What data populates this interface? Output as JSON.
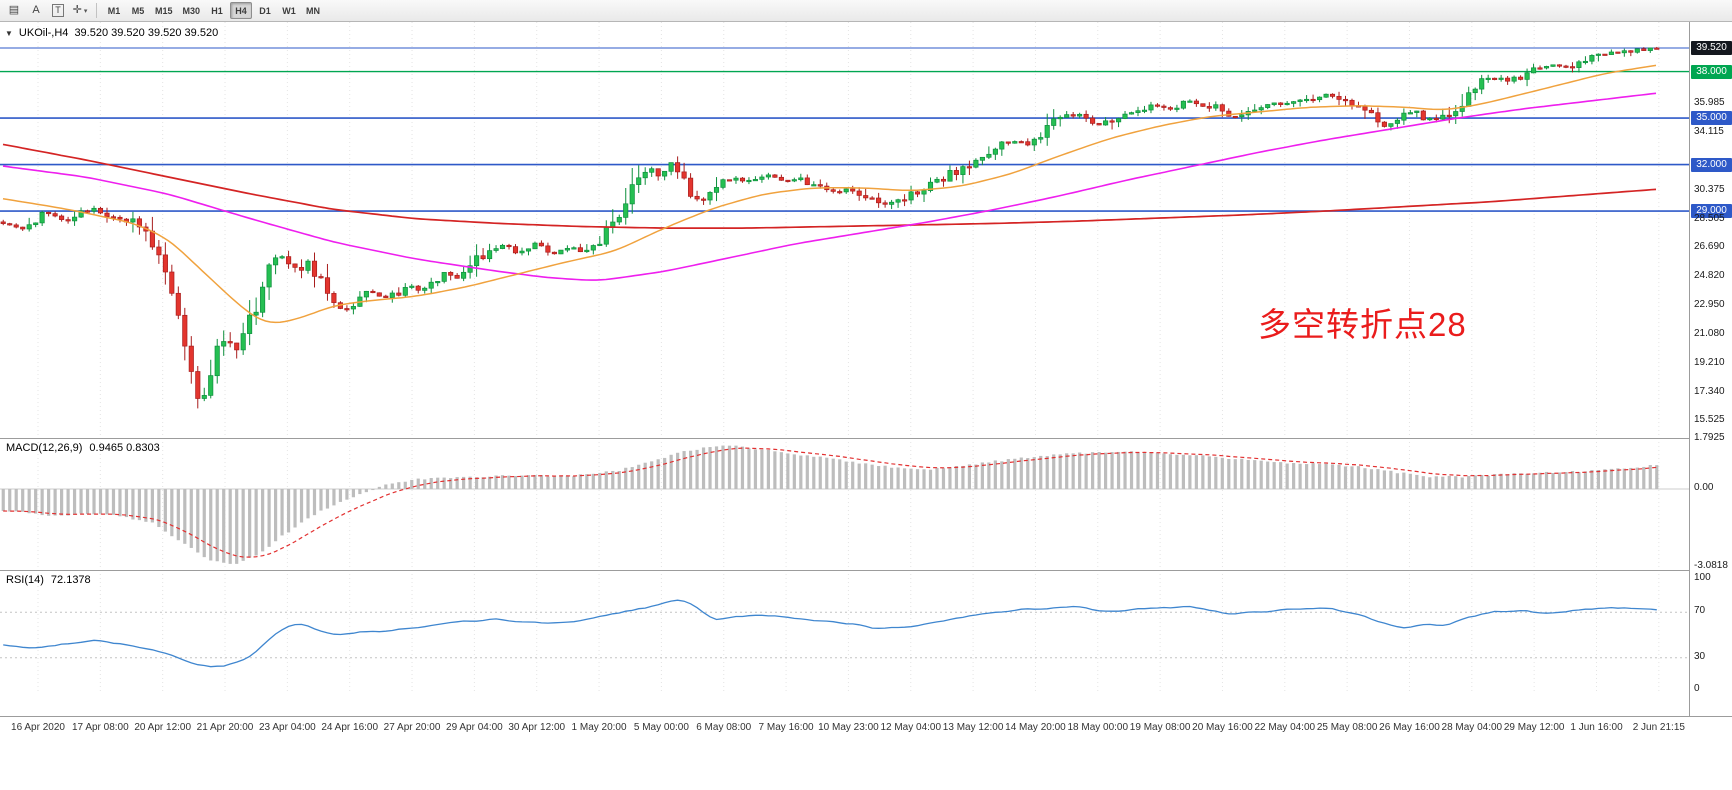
{
  "toolbar": {
    "tools": [
      {
        "name": "charts-grid-icon",
        "glyph": "▤"
      },
      {
        "name": "text-label-tool",
        "glyph": "A"
      },
      {
        "name": "text-box-tool",
        "glyph": "T"
      },
      {
        "name": "crosshair-tool",
        "glyph": "✛",
        "caret": "▾"
      }
    ],
    "timeframes": [
      "M1",
      "M5",
      "M15",
      "M30",
      "H1",
      "H4",
      "D1",
      "W1",
      "MN"
    ],
    "active_timeframe": "H4"
  },
  "main_chart": {
    "collapse_icon": "▼",
    "title": "UKOil-,H4",
    "ohlc": "39.520 39.520 39.520 39.520",
    "annotation": "多空转折点28",
    "axis_ticks": [
      "35.985",
      "34.115",
      "30.375",
      "28.505",
      "26.690",
      "24.820",
      "22.950",
      "21.080",
      "19.210",
      "17.340",
      "15.525"
    ],
    "badges": [
      {
        "label": "39.520",
        "value": 39.52,
        "bg": "#14181f"
      },
      {
        "label": "38.000",
        "value": 38.0,
        "bg": "#00a651"
      },
      {
        "label": "35.000",
        "value": 35.0,
        "bg": "#2e59c8"
      },
      {
        "label": "32.000",
        "value": 32.0,
        "bg": "#2e59c8"
      },
      {
        "label": "29.000",
        "value": 29.0,
        "bg": "#2e59c8"
      }
    ]
  },
  "macd_panel": {
    "label": "MACD(12,26,9)",
    "values": "0.9465 0.8303",
    "axis": [
      "1.7925",
      "0.00",
      "-3.0818"
    ]
  },
  "rsi_panel": {
    "label": "RSI(14)",
    "value": "72.1378",
    "axis": [
      "100",
      "70",
      "30",
      "0"
    ]
  },
  "time_axis": {
    "labels": [
      "16 Apr 2020",
      "17 Apr 08:00",
      "20 Apr 12:00",
      "21 Apr 20:00",
      "23 Apr 04:00",
      "24 Apr 16:00",
      "27 Apr 20:00",
      "29 Apr 04:00",
      "30 Apr 12:00",
      "1 May 20:00",
      "5 May 00:00",
      "6 May 08:00",
      "7 May 16:00",
      "10 May 23:00",
      "12 May 04:00",
      "13 May 12:00",
      "14 May 20:00",
      "18 May 00:00",
      "19 May 08:00",
      "20 May 16:00",
      "22 May 04:00",
      "25 May 08:00",
      "26 May 16:00",
      "28 May 04:00",
      "29 May 12:00",
      "1 Jun 16:00",
      "2 Jun 21:15"
    ]
  },
  "chart_data": {
    "type": "candlestick",
    "symbol": "UKOil-",
    "timeframe": "H4",
    "current_price": 39.52,
    "macd_current": 0.9465,
    "macd_signal_current": 0.8303,
    "rsi_current": 72.1378,
    "price_axis_range": [
      15.525,
      39.725
    ],
    "levels": [
      {
        "value": 39.52,
        "color": "#2e59c8",
        "width": 1
      },
      {
        "value": 38.0,
        "color": "#00a651",
        "width": 1.4
      },
      {
        "value": 35.0,
        "color": "#2e59c8",
        "width": 1.6
      },
      {
        "value": 32.0,
        "color": "#2e59c8",
        "width": 1.6
      },
      {
        "value": 29.0,
        "color": "#2e59c8",
        "width": 1.6
      }
    ],
    "price_anchors": [
      [
        0,
        28.3
      ],
      [
        0.012,
        27.8
      ],
      [
        0.025,
        28.9
      ],
      [
        0.037,
        28.4
      ],
      [
        0.052,
        29.2
      ],
      [
        0.065,
        28.8
      ],
      [
        0.08,
        28.3
      ],
      [
        0.09,
        26.8
      ],
      [
        0.098,
        24.6
      ],
      [
        0.107,
        21.8
      ],
      [
        0.113,
        18.6
      ],
      [
        0.118,
        16.9
      ],
      [
        0.123,
        17.6
      ],
      [
        0.127,
        19.2
      ],
      [
        0.133,
        21.0
      ],
      [
        0.14,
        20.1
      ],
      [
        0.148,
        22.4
      ],
      [
        0.155,
        23.3
      ],
      [
        0.162,
        25.7
      ],
      [
        0.17,
        26.2
      ],
      [
        0.178,
        25.0
      ],
      [
        0.185,
        25.5
      ],
      [
        0.193,
        24.0
      ],
      [
        0.199,
        23.1
      ],
      [
        0.206,
        22.6
      ],
      [
        0.214,
        23.3
      ],
      [
        0.222,
        23.8
      ],
      [
        0.23,
        23.4
      ],
      [
        0.238,
        23.7
      ],
      [
        0.245,
        24.2
      ],
      [
        0.252,
        23.7
      ],
      [
        0.26,
        24.4
      ],
      [
        0.267,
        25.1
      ],
      [
        0.274,
        24.6
      ],
      [
        0.282,
        25.3
      ],
      [
        0.292,
        26.4
      ],
      [
        0.302,
        26.8
      ],
      [
        0.312,
        26.3
      ],
      [
        0.322,
        26.9
      ],
      [
        0.332,
        26.2
      ],
      [
        0.342,
        26.6
      ],
      [
        0.352,
        26.4
      ],
      [
        0.362,
        27.2
      ],
      [
        0.372,
        28.8
      ],
      [
        0.382,
        30.6
      ],
      [
        0.39,
        31.9
      ],
      [
        0.397,
        31.3
      ],
      [
        0.404,
        32.1
      ],
      [
        0.41,
        30.9
      ],
      [
        0.417,
        29.8
      ],
      [
        0.424,
        29.5
      ],
      [
        0.432,
        30.6
      ],
      [
        0.442,
        31.2
      ],
      [
        0.453,
        30.8
      ],
      [
        0.462,
        31.3
      ],
      [
        0.472,
        30.9
      ],
      [
        0.482,
        31.1
      ],
      [
        0.492,
        30.6
      ],
      [
        0.502,
        30.2
      ],
      [
        0.512,
        30.5
      ],
      [
        0.523,
        29.9
      ],
      [
        0.532,
        29.3
      ],
      [
        0.545,
        29.9
      ],
      [
        0.562,
        30.7
      ],
      [
        0.574,
        31.4
      ],
      [
        0.586,
        32.2
      ],
      [
        0.598,
        32.9
      ],
      [
        0.61,
        33.6
      ],
      [
        0.622,
        33.3
      ],
      [
        0.634,
        34.5
      ],
      [
        0.645,
        35.2
      ],
      [
        0.655,
        35.0
      ],
      [
        0.663,
        34.5
      ],
      [
        0.672,
        35.1
      ],
      [
        0.683,
        35.5
      ],
      [
        0.695,
        35.8
      ],
      [
        0.707,
        35.6
      ],
      [
        0.718,
        36.1
      ],
      [
        0.73,
        35.8
      ],
      [
        0.742,
        35.1
      ],
      [
        0.754,
        35.6
      ],
      [
        0.767,
        36.0
      ],
      [
        0.78,
        35.9
      ],
      [
        0.79,
        36.2
      ],
      [
        0.8,
        36.5
      ],
      [
        0.815,
        36.0
      ],
      [
        0.825,
        35.2
      ],
      [
        0.835,
        34.5
      ],
      [
        0.845,
        35.1
      ],
      [
        0.853,
        35.5
      ],
      [
        0.861,
        34.9
      ],
      [
        0.869,
        34.8
      ],
      [
        0.877,
        35.4
      ],
      [
        0.886,
        36.8
      ],
      [
        0.893,
        37.3
      ],
      [
        0.902,
        37.6
      ],
      [
        0.912,
        37.4
      ],
      [
        0.921,
        37.9
      ],
      [
        0.929,
        38.2
      ],
      [
        0.938,
        38.4
      ],
      [
        0.947,
        38.2
      ],
      [
        0.957,
        38.7
      ],
      [
        0.967,
        39.0
      ],
      [
        0.977,
        39.3
      ],
      [
        0.988,
        39.4
      ],
      [
        1,
        39.52
      ]
    ],
    "ma_fast_orange": [
      [
        0,
        29.8
      ],
      [
        0.04,
        29.1
      ],
      [
        0.08,
        28.2
      ],
      [
        0.1,
        27.2
      ],
      [
        0.12,
        25.2
      ],
      [
        0.14,
        23.2
      ],
      [
        0.155,
        21.9
      ],
      [
        0.165,
        21.7
      ],
      [
        0.18,
        22.1
      ],
      [
        0.2,
        22.9
      ],
      [
        0.22,
        23.2
      ],
      [
        0.25,
        23.5
      ],
      [
        0.28,
        24.1
      ],
      [
        0.31,
        24.9
      ],
      [
        0.34,
        25.7
      ],
      [
        0.37,
        26.4
      ],
      [
        0.4,
        27.9
      ],
      [
        0.43,
        29.2
      ],
      [
        0.46,
        30.1
      ],
      [
        0.49,
        30.5
      ],
      [
        0.52,
        30.5
      ],
      [
        0.55,
        30.3
      ],
      [
        0.58,
        30.6
      ],
      [
        0.61,
        31.4
      ],
      [
        0.64,
        32.6
      ],
      [
        0.67,
        33.7
      ],
      [
        0.7,
        34.5
      ],
      [
        0.73,
        35.1
      ],
      [
        0.76,
        35.4
      ],
      [
        0.79,
        35.7
      ],
      [
        0.82,
        35.8
      ],
      [
        0.85,
        35.7
      ],
      [
        0.87,
        35.5
      ],
      [
        0.89,
        35.8
      ],
      [
        0.91,
        36.3
      ],
      [
        0.94,
        37.1
      ],
      [
        0.97,
        37.9
      ],
      [
        1,
        38.4
      ]
    ],
    "ma_mid_magenta": [
      [
        0,
        31.9
      ],
      [
        0.05,
        31.2
      ],
      [
        0.1,
        30.1
      ],
      [
        0.15,
        28.5
      ],
      [
        0.2,
        27.0
      ],
      [
        0.25,
        25.9
      ],
      [
        0.3,
        25.1
      ],
      [
        0.33,
        24.7
      ],
      [
        0.36,
        24.5
      ],
      [
        0.4,
        25.1
      ],
      [
        0.44,
        26.0
      ],
      [
        0.48,
        26.9
      ],
      [
        0.52,
        27.6
      ],
      [
        0.56,
        28.3
      ],
      [
        0.6,
        29.1
      ],
      [
        0.64,
        30.0
      ],
      [
        0.68,
        31.0
      ],
      [
        0.72,
        31.9
      ],
      [
        0.76,
        32.8
      ],
      [
        0.8,
        33.6
      ],
      [
        0.84,
        34.3
      ],
      [
        0.88,
        35.0
      ],
      [
        0.92,
        35.6
      ],
      [
        0.96,
        36.1
      ],
      [
        1,
        36.6
      ]
    ],
    "ma_slow_red": [
      [
        0,
        33.3
      ],
      [
        0.05,
        32.3
      ],
      [
        0.1,
        31.2
      ],
      [
        0.15,
        30.1
      ],
      [
        0.2,
        29.1
      ],
      [
        0.25,
        28.5
      ],
      [
        0.3,
        28.2
      ],
      [
        0.35,
        28.0
      ],
      [
        0.4,
        27.9
      ],
      [
        0.45,
        27.9
      ],
      [
        0.5,
        28.0
      ],
      [
        0.55,
        28.1
      ],
      [
        0.6,
        28.2
      ],
      [
        0.65,
        28.35
      ],
      [
        0.7,
        28.55
      ],
      [
        0.75,
        28.75
      ],
      [
        0.8,
        29.0
      ],
      [
        0.85,
        29.3
      ],
      [
        0.9,
        29.6
      ],
      [
        0.95,
        30.0
      ],
      [
        1,
        30.4
      ]
    ],
    "macd_anchors": [
      [
        0,
        -0.85
      ],
      [
        0.03,
        -1.05
      ],
      [
        0.06,
        -0.95
      ],
      [
        0.09,
        -1.35
      ],
      [
        0.11,
        -2.2
      ],
      [
        0.125,
        -2.85
      ],
      [
        0.14,
        -3.0
      ],
      [
        0.155,
        -2.55
      ],
      [
        0.17,
        -1.8
      ],
      [
        0.19,
        -0.95
      ],
      [
        0.21,
        -0.35
      ],
      [
        0.23,
        0.15
      ],
      [
        0.25,
        0.4
      ],
      [
        0.28,
        0.45
      ],
      [
        0.31,
        0.55
      ],
      [
        0.34,
        0.5
      ],
      [
        0.37,
        0.7
      ],
      [
        0.39,
        1.05
      ],
      [
        0.41,
        1.45
      ],
      [
        0.425,
        1.65
      ],
      [
        0.44,
        1.72
      ],
      [
        0.46,
        1.55
      ],
      [
        0.48,
        1.38
      ],
      [
        0.5,
        1.2
      ],
      [
        0.52,
        1.0
      ],
      [
        0.54,
        0.85
      ],
      [
        0.56,
        0.78
      ],
      [
        0.58,
        0.9
      ],
      [
        0.6,
        1.1
      ],
      [
        0.62,
        1.25
      ],
      [
        0.64,
        1.38
      ],
      [
        0.66,
        1.45
      ],
      [
        0.68,
        1.48
      ],
      [
        0.7,
        1.42
      ],
      [
        0.72,
        1.35
      ],
      [
        0.74,
        1.22
      ],
      [
        0.76,
        1.1
      ],
      [
        0.78,
        1.02
      ],
      [
        0.8,
        0.98
      ],
      [
        0.82,
        0.88
      ],
      [
        0.84,
        0.68
      ],
      [
        0.86,
        0.5
      ],
      [
        0.88,
        0.48
      ],
      [
        0.9,
        0.55
      ],
      [
        0.92,
        0.62
      ],
      [
        0.94,
        0.66
      ],
      [
        0.96,
        0.72
      ],
      [
        0.98,
        0.82
      ],
      [
        1,
        0.9465
      ]
    ],
    "rsi_anchors": [
      [
        0,
        41
      ],
      [
        0.02,
        38
      ],
      [
        0.04,
        43
      ],
      [
        0.06,
        45
      ],
      [
        0.08,
        40
      ],
      [
        0.1,
        33
      ],
      [
        0.115,
        25
      ],
      [
        0.13,
        21
      ],
      [
        0.14,
        26
      ],
      [
        0.15,
        31
      ],
      [
        0.16,
        45
      ],
      [
        0.17,
        57
      ],
      [
        0.18,
        60
      ],
      [
        0.19,
        55
      ],
      [
        0.2,
        50
      ],
      [
        0.22,
        53
      ],
      [
        0.24,
        55
      ],
      [
        0.26,
        58
      ],
      [
        0.28,
        62
      ],
      [
        0.3,
        64
      ],
      [
        0.32,
        60
      ],
      [
        0.34,
        61
      ],
      [
        0.36,
        65
      ],
      [
        0.38,
        72
      ],
      [
        0.4,
        78
      ],
      [
        0.41,
        81
      ],
      [
        0.42,
        73
      ],
      [
        0.43,
        62
      ],
      [
        0.44,
        66
      ],
      [
        0.46,
        68
      ],
      [
        0.48,
        64
      ],
      [
        0.5,
        62
      ],
      [
        0.52,
        58
      ],
      [
        0.53,
        55
      ],
      [
        0.55,
        58
      ],
      [
        0.57,
        63
      ],
      [
        0.59,
        68
      ],
      [
        0.61,
        71
      ],
      [
        0.63,
        73
      ],
      [
        0.65,
        75
      ],
      [
        0.66,
        72
      ],
      [
        0.67,
        70
      ],
      [
        0.68,
        72
      ],
      [
        0.7,
        74
      ],
      [
        0.72,
        75
      ],
      [
        0.74,
        68
      ],
      [
        0.76,
        71
      ],
      [
        0.78,
        72
      ],
      [
        0.8,
        74
      ],
      [
        0.82,
        68
      ],
      [
        0.84,
        58
      ],
      [
        0.85,
        55
      ],
      [
        0.86,
        60
      ],
      [
        0.87,
        57
      ],
      [
        0.88,
        63
      ],
      [
        0.9,
        70
      ],
      [
        0.92,
        71
      ],
      [
        0.93,
        68
      ],
      [
        0.94,
        70
      ],
      [
        0.96,
        73
      ],
      [
        0.98,
        74
      ],
      [
        1,
        72.1378
      ]
    ]
  }
}
